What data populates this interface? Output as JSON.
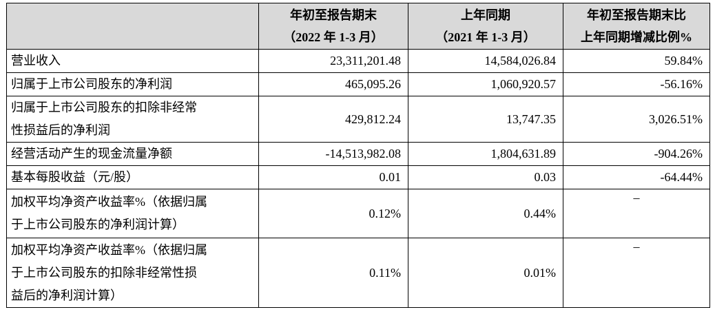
{
  "table": {
    "headers": [
      {
        "line1": "",
        "line2": ""
      },
      {
        "line1": "年初至报告期末",
        "line2": "（2022 年 1-3 月）"
      },
      {
        "line1": "上年同期",
        "line2": "（2021 年 1-3 月）"
      },
      {
        "line1": "年初至报告期末比",
        "line2": "上年同期增减比例%"
      }
    ],
    "rows": [
      {
        "label_lines": [
          "营业收入"
        ],
        "current": "23,311,201.48",
        "prior": "14,584,026.84",
        "change": "59.84%"
      },
      {
        "label_lines": [
          "归属于上市公司股东的净利润"
        ],
        "current": "465,095.26",
        "prior": "1,060,920.57",
        "change": "-56.16%"
      },
      {
        "label_lines": [
          "归属于上市公司股东的扣除非经常",
          "性损益后的净利润"
        ],
        "current": "429,812.24",
        "prior": "13,747.35",
        "change": "3,026.51%"
      },
      {
        "label_lines": [
          "经营活动产生的现金流量净额"
        ],
        "current": "-14,513,982.08",
        "prior": "1,804,631.89",
        "change": "-904.26%"
      },
      {
        "label_lines": [
          "基本每股收益（元/股）"
        ],
        "current": "0.01",
        "prior": "0.03",
        "change": "-64.44%"
      },
      {
        "label_lines": [
          "加权平均净资产收益率%（依据归属",
          "于上市公司股东的净利润计算）"
        ],
        "current": "0.12%",
        "prior": "0.44%",
        "change": "–"
      },
      {
        "label_lines": [
          "加权平均净资产收益率%（依据归属",
          "于上市公司股东的扣除非经常性损",
          "益后的净利润计算）"
        ],
        "current": "0.11%",
        "prior": "0.01%",
        "change": "–"
      }
    ]
  }
}
